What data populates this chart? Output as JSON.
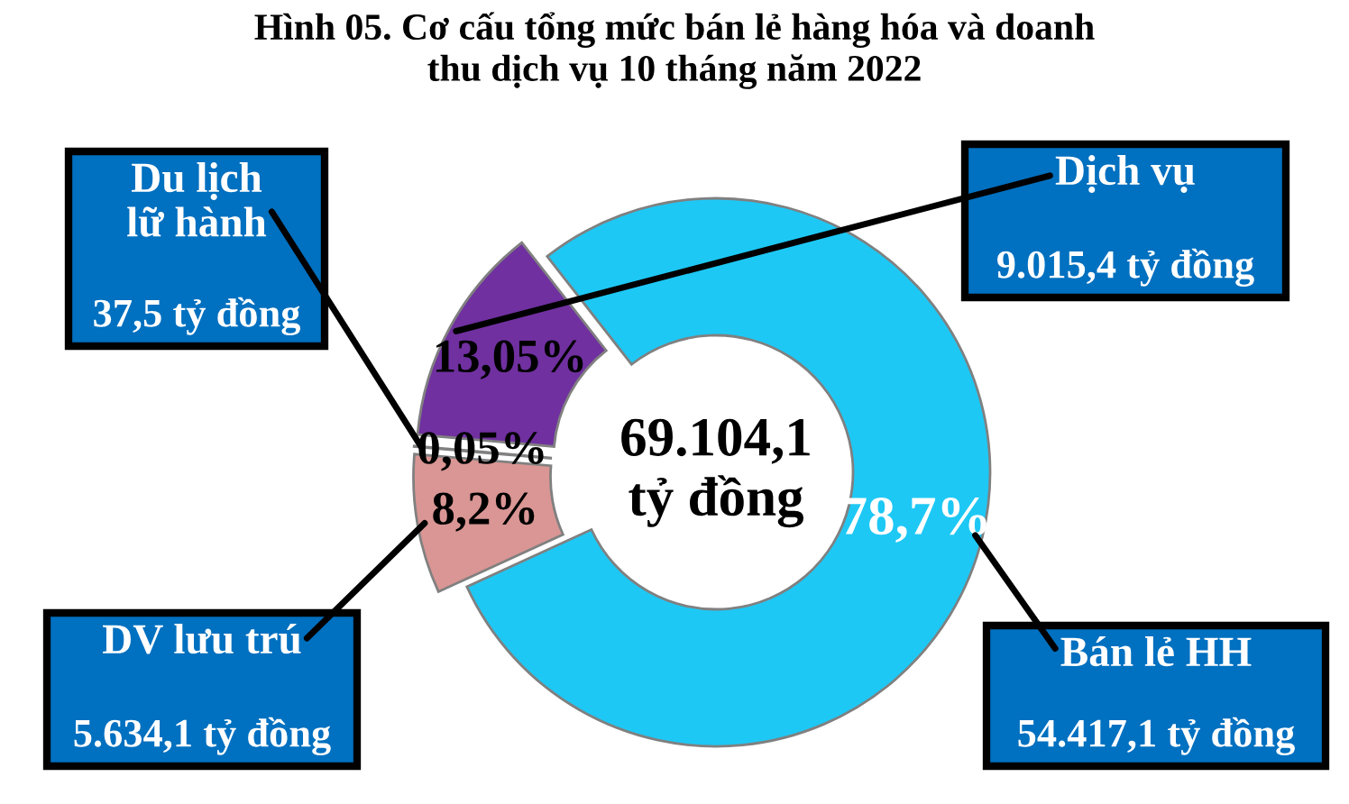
{
  "chart_data": {
    "type": "donut",
    "title": "Hình 05. Cơ cấu tổng mức bán lẻ hàng hóa và doanh\nthu dịch vụ 10 tháng năm 2022",
    "categories": [
      "Bán lẻ HH",
      "DV lưu trú",
      "Du lịch\nlữ hành",
      "Dịch vụ"
    ],
    "values": [
      78.7,
      8.2,
      0.05,
      13.05
    ],
    "colors": [
      "#1ec8f5",
      "#d99694",
      "#92d050",
      "#7030a0"
    ],
    "value_labels": [
      "78,7%",
      "8,2%",
      "0,05%",
      "13,05%"
    ],
    "annotations": [
      "69.104,1\ntỷ đồng",
      "54.417,1 tỷ đồng",
      "5.634,1 tỷ đồng",
      "37,5 tỷ đồng",
      "9.015,4 tỷ đồng"
    ],
    "legend": false
  }
}
